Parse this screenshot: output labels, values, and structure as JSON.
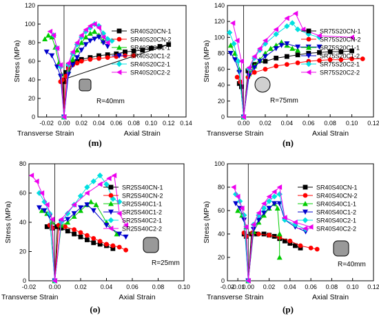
{
  "chart_data": [
    {
      "id": "m",
      "type": "line",
      "panel_label": "(m)",
      "ylabel": "Stress (MPa)",
      "x_left_label": "Transverse  Strain",
      "x_right_label": "Axial Strain",
      "xlim": [
        -0.03,
        0.14
      ],
      "ylim": [
        0,
        120
      ],
      "xticks": [
        -0.02,
        0.0,
        0.02,
        0.04,
        0.06,
        0.08,
        0.1,
        0.12,
        0.14
      ],
      "xtick_labels": [
        "-0.02",
        "0.00",
        "0.02",
        "0.04",
        "0.06",
        "0.08",
        "0.10",
        "0.12",
        "0.14"
      ],
      "yticks": [
        0,
        20,
        40,
        60,
        80,
        100,
        120
      ],
      "section": {
        "shape": "rounded-square",
        "label": "R=40mm"
      },
      "series": [
        {
          "name": "SR40S20CN-1",
          "color": "#000000",
          "marker": "square",
          "x": [
            0.0,
            0.002,
            0.005,
            0.01,
            0.015,
            0.02,
            0.03,
            0.04,
            0.05,
            0.06,
            0.07,
            0.08,
            0.09,
            0.1,
            0.11,
            0.12,
            -0.002,
            -0.001,
            0.0
          ],
          "y": [
            38,
            48,
            55,
            58,
            60,
            62,
            64,
            66,
            67,
            68,
            70,
            71,
            72,
            74,
            76,
            78,
            40,
            38,
            0
          ]
        },
        {
          "name": "SR40S20CN-2",
          "color": "#ff0000",
          "marker": "circle",
          "x": [
            -0.004,
            -0.002,
            0.0,
            0.002,
            0.005,
            0.01,
            0.015,
            0.02,
            0.03,
            0.04,
            0.05,
            0.06,
            0.07,
            0.08
          ],
          "y": [
            38,
            40,
            0,
            44,
            52,
            56,
            58,
            60,
            62,
            63,
            64,
            65,
            66,
            66
          ]
        },
        {
          "name": "SR40S20C1-1",
          "color": "#00cc00",
          "marker": "triangle-up",
          "x": [
            -0.022,
            -0.018,
            -0.014,
            -0.01,
            -0.006,
            -0.003,
            0.0,
            0.005,
            0.01,
            0.015,
            0.02,
            0.025,
            0.03,
            0.035,
            0.04,
            0.045
          ],
          "y": [
            84,
            88,
            86,
            75,
            58,
            46,
            0,
            50,
            62,
            72,
            80,
            86,
            90,
            92,
            88,
            82
          ]
        },
        {
          "name": "SR40S20C1-2",
          "color": "#0000cc",
          "marker": "triangle-down",
          "x": [
            -0.02,
            -0.014,
            -0.008,
            -0.004,
            0.0,
            0.005,
            0.01,
            0.015,
            0.02,
            0.025,
            0.03,
            0.035,
            0.04,
            0.045,
            0.05
          ],
          "y": [
            70,
            66,
            54,
            44,
            0,
            46,
            56,
            64,
            72,
            78,
            82,
            84,
            86,
            80,
            76
          ]
        },
        {
          "name": "SR40S20C2-1",
          "color": "#00e0e0",
          "marker": "diamond",
          "x": [
            -0.012,
            -0.008,
            -0.004,
            0.0,
            0.005,
            0.01,
            0.015,
            0.02,
            0.025,
            0.03,
            0.035,
            0.04,
            0.045,
            0.05,
            0.055
          ],
          "y": [
            88,
            74,
            54,
            0,
            56,
            68,
            78,
            86,
            92,
            96,
            100,
            98,
            90,
            84,
            82
          ]
        },
        {
          "name": "SR40S20C2-2",
          "color": "#ee00ee",
          "marker": "triangle-left",
          "x": [
            -0.016,
            -0.012,
            -0.008,
            -0.004,
            0.0,
            0.005,
            0.01,
            0.015,
            0.02,
            0.025,
            0.03,
            0.035,
            0.04,
            0.045,
            0.05
          ],
          "y": [
            92,
            88,
            74,
            56,
            0,
            58,
            70,
            80,
            88,
            94,
            98,
            100,
            96,
            86,
            80
          ]
        }
      ]
    },
    {
      "id": "n",
      "type": "line",
      "panel_label": "(n)",
      "ylabel": "Stress (MPa)",
      "x_left_label": "Transverse  Strain",
      "x_right_label": "Axial Strain",
      "xlim": [
        -0.015,
        0.12
      ],
      "ylim": [
        0,
        140
      ],
      "xticks": [
        0.0,
        0.02,
        0.04,
        0.06,
        0.08,
        0.1,
        0.12
      ],
      "xtick_labels": [
        "0.00",
        "0.02",
        "0.04",
        "0.06",
        "0.08",
        "0.10",
        "0.12"
      ],
      "yticks": [
        0,
        20,
        40,
        60,
        80,
        100,
        120,
        140
      ],
      "section": {
        "shape": "circle",
        "label": "R=75mm"
      },
      "series": [
        {
          "name": "SR75S20CN-1",
          "color": "#000000",
          "marker": "square",
          "x": [
            -0.004,
            -0.002,
            0.0,
            0.004,
            0.01,
            0.02,
            0.03,
            0.04,
            0.05,
            0.06,
            0.07,
            0.08,
            0.09,
            0.1
          ],
          "y": [
            42,
            38,
            0,
            58,
            66,
            70,
            74,
            76,
            78,
            80,
            81,
            82,
            82,
            83
          ]
        },
        {
          "name": "SR75S20CN-2",
          "color": "#ff0000",
          "marker": "circle",
          "x": [
            -0.006,
            -0.003,
            0.0,
            0.004,
            0.01,
            0.02,
            0.03,
            0.04,
            0.05,
            0.06,
            0.07,
            0.08,
            0.09,
            0.1,
            0.11
          ],
          "y": [
            50,
            44,
            0,
            50,
            56,
            60,
            64,
            66,
            68,
            70,
            71,
            72,
            72,
            73,
            73
          ]
        },
        {
          "name": "SR75S20C1-1",
          "color": "#00cc00",
          "marker": "triangle-up",
          "x": [
            -0.012,
            -0.008,
            -0.004,
            0.0,
            0.005,
            0.01,
            0.015,
            0.02,
            0.025,
            0.03,
            0.035,
            0.04,
            0.045,
            0.05
          ],
          "y": [
            90,
            80,
            60,
            0,
            54,
            64,
            72,
            80,
            86,
            90,
            94,
            90,
            86,
            84
          ]
        },
        {
          "name": "SR75S20C1-2",
          "color": "#0000cc",
          "marker": "triangle-down",
          "x": [
            -0.012,
            -0.008,
            -0.004,
            0.0,
            0.005,
            0.01,
            0.015,
            0.02,
            0.03,
            0.035,
            0.04,
            0.05,
            0.06,
            0.07
          ],
          "y": [
            80,
            72,
            56,
            0,
            52,
            62,
            70,
            76,
            86,
            90,
            92,
            88,
            88,
            88
          ]
        },
        {
          "name": "SR75S20C2-1",
          "color": "#00e0e0",
          "marker": "diamond",
          "x": [
            -0.013,
            -0.009,
            -0.005,
            0.0,
            0.005,
            0.01,
            0.015,
            0.02,
            0.03,
            0.04,
            0.045,
            0.05,
            0.06,
            0.07
          ],
          "y": [
            106,
            92,
            70,
            0,
            60,
            74,
            84,
            92,
            104,
            114,
            118,
            110,
            104,
            100
          ]
        },
        {
          "name": "SR75S20C2-2",
          "color": "#ee00ee",
          "marker": "triangle-left",
          "x": [
            -0.01,
            -0.006,
            -0.002,
            0.0,
            0.005,
            0.01,
            0.015,
            0.02,
            0.03,
            0.04,
            0.048,
            0.055,
            0.07,
            0.1
          ],
          "y": [
            118,
            96,
            70,
            0,
            62,
            76,
            86,
            96,
            110,
            124,
            130,
            110,
            102,
            100
          ]
        }
      ]
    },
    {
      "id": "o",
      "type": "line",
      "panel_label": "(o)",
      "ylabel": "Stress (MPa)",
      "x_left_label": "Transverse  Strain",
      "x_right_label": "Axial Strain",
      "xlim": [
        -0.02,
        0.1
      ],
      "ylim": [
        0,
        80
      ],
      "xticks": [
        -0.02,
        0.0,
        0.02,
        0.04,
        0.06,
        0.08,
        0.1
      ],
      "xtick_labels": [
        "-0.02",
        "0.00",
        "0.02",
        "0.04",
        "0.06",
        "0.08",
        "0.10"
      ],
      "yticks": [
        0,
        20,
        40,
        60,
        80
      ],
      "section": {
        "shape": "rounded-square",
        "label": "R=25mm"
      },
      "series": [
        {
          "name": "SR25S40CN-1",
          "color": "#000000",
          "marker": "square",
          "x": [
            -0.006,
            -0.002,
            0.0,
            0.002,
            0.005,
            0.01,
            0.015,
            0.02,
            0.025,
            0.03,
            0.035,
            0.04,
            0.045
          ],
          "y": [
            37,
            36,
            0,
            37,
            36,
            34,
            32,
            30,
            28,
            26,
            25,
            24,
            22
          ]
        },
        {
          "name": "SR25S40CN-2",
          "color": "#ff0000",
          "marker": "circle",
          "x": [
            -0.004,
            -0.002,
            0.0,
            0.003,
            0.008,
            0.015,
            0.02,
            0.025,
            0.03,
            0.035,
            0.04,
            0.045,
            0.05,
            0.055
          ],
          "y": [
            38,
            36,
            0,
            38,
            37,
            35,
            33,
            31,
            29,
            27,
            25,
            24,
            23,
            21
          ]
        },
        {
          "name": "SR25S40C1-1",
          "color": "#00cc00",
          "marker": "triangle-up",
          "x": [
            -0.01,
            -0.006,
            -0.002,
            0.0,
            0.005,
            0.01,
            0.015,
            0.02,
            0.025,
            0.028,
            0.032,
            0.04,
            0.048
          ],
          "y": [
            48,
            46,
            40,
            0,
            38,
            40,
            44,
            48,
            52,
            54,
            52,
            40,
            32
          ]
        },
        {
          "name": "SR25S40C1-2",
          "color": "#0000cc",
          "marker": "triangle-down",
          "x": [
            -0.012,
            -0.008,
            -0.004,
            0.0,
            0.005,
            0.01,
            0.015,
            0.02,
            0.025,
            0.03,
            0.04,
            0.05,
            0.055
          ],
          "y": [
            50,
            48,
            44,
            0,
            40,
            42,
            46,
            50,
            52,
            48,
            38,
            32,
            30
          ]
        },
        {
          "name": "SR25S40C2-1",
          "color": "#00e0e0",
          "marker": "diamond",
          "x": [
            -0.012,
            -0.008,
            -0.004,
            0.0,
            0.005,
            0.01,
            0.015,
            0.02,
            0.025,
            0.03,
            0.035,
            0.04,
            0.045,
            0.05
          ],
          "y": [
            60,
            54,
            46,
            0,
            40,
            46,
            52,
            58,
            64,
            68,
            72,
            66,
            56,
            54
          ]
        },
        {
          "name": "SR25S40C2-2",
          "color": "#ee00ee",
          "marker": "triangle-left",
          "x": [
            -0.018,
            -0.014,
            -0.01,
            -0.006,
            -0.002,
            0.0,
            0.005,
            0.015,
            0.025,
            0.035,
            0.042,
            0.046,
            0.05,
            0.055
          ],
          "y": [
            72,
            68,
            60,
            52,
            42,
            0,
            42,
            52,
            60,
            66,
            70,
            72,
            46,
            38
          ]
        }
      ]
    },
    {
      "id": "p",
      "type": "line",
      "panel_label": "(p)",
      "ylabel": "Stress (MPa)",
      "x_left_label": "Transverse  Strain",
      "x_right_label": "Axial Strain",
      "xlim": [
        -0.02,
        0.12
      ],
      "ylim": [
        0,
        100
      ],
      "xticks": [
        0.0,
        0.02,
        0.04,
        0.06,
        0.08,
        0.1,
        0.12
      ],
      "xtick_labels": [
        "0.00",
        "0.02",
        "0.04",
        "0.06",
        "0.08",
        "0.10",
        "0.12"
      ],
      "extra_ticks": [
        {
          "value": -0.02,
          "label": "-0.02"
        },
        {
          "value": -0.01,
          "label": "-0.01"
        }
      ],
      "yticks": [
        0,
        20,
        40,
        60,
        80,
        100
      ],
      "section": {
        "shape": "rounded-square",
        "label": "R=40mm"
      },
      "series": [
        {
          "name": "SR40S40CN-1",
          "color": "#000000",
          "marker": "square",
          "x": [
            -0.004,
            -0.002,
            0.0,
            0.003,
            0.008,
            0.015,
            0.02,
            0.025,
            0.03,
            0.035,
            0.04,
            0.045,
            0.05
          ],
          "y": [
            40,
            38,
            0,
            40,
            40,
            40,
            39,
            38,
            36,
            34,
            32,
            30,
            28
          ]
        },
        {
          "name": "SR40S40CN-2",
          "color": "#ff0000",
          "marker": "circle",
          "x": [
            -0.004,
            -0.002,
            0.0,
            0.004,
            0.01,
            0.02,
            0.03,
            0.04,
            0.05,
            0.06,
            0.066
          ],
          "y": [
            41,
            38,
            0,
            41,
            40,
            39,
            37,
            34,
            30,
            28,
            27
          ]
        },
        {
          "name": "SR40S40C1-1",
          "color": "#00cc00",
          "marker": "triangle-up",
          "x": [
            -0.01,
            -0.006,
            -0.002,
            0.0,
            0.005,
            0.01,
            0.015,
            0.02,
            0.025,
            0.028,
            0.03,
            0.03
          ],
          "y": [
            60,
            56,
            46,
            0,
            42,
            50,
            56,
            62,
            66,
            62,
            40,
            20
          ]
        },
        {
          "name": "SR40S40C1-2",
          "color": "#0000cc",
          "marker": "triangle-down",
          "x": [
            -0.012,
            -0.008,
            -0.004,
            0.0,
            0.005,
            0.01,
            0.015,
            0.02,
            0.025,
            0.03,
            0.035,
            0.045,
            0.055
          ],
          "y": [
            66,
            62,
            52,
            0,
            44,
            52,
            58,
            62,
            66,
            66,
            52,
            46,
            42
          ]
        },
        {
          "name": "SR40S40C2-1",
          "color": "#00e0e0",
          "marker": "diamond",
          "x": [
            -0.012,
            -0.008,
            -0.004,
            0.0,
            0.005,
            0.01,
            0.015,
            0.02,
            0.025,
            0.03,
            0.035,
            0.045,
            0.055
          ],
          "y": [
            74,
            68,
            56,
            0,
            48,
            56,
            62,
            68,
            72,
            74,
            52,
            48,
            44
          ]
        },
        {
          "name": "SR40S40C2-2",
          "color": "#ee00ee",
          "marker": "triangle-left",
          "x": [
            -0.014,
            -0.01,
            -0.006,
            -0.002,
            0.0,
            0.005,
            0.01,
            0.015,
            0.02,
            0.025,
            0.03,
            0.035,
            0.045,
            0.06
          ],
          "y": [
            80,
            72,
            62,
            46,
            0,
            48,
            58,
            66,
            72,
            76,
            80,
            54,
            50,
            46
          ]
        }
      ]
    }
  ]
}
